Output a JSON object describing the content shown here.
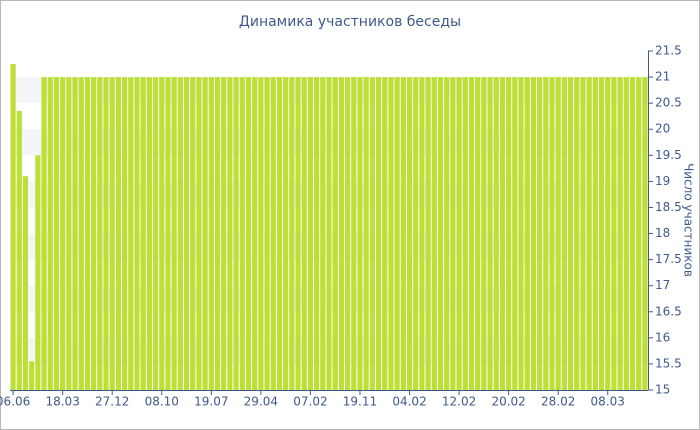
{
  "chart_data": {
    "type": "bar",
    "title": "Динамика участников беседы",
    "y_axis_label": "Число участников",
    "categories": [
      "06.06",
      null,
      null,
      null,
      null,
      null,
      null,
      null,
      "18.03",
      null,
      null,
      null,
      null,
      null,
      null,
      null,
      "27.12",
      null,
      null,
      null,
      null,
      null,
      null,
      null,
      "08.10",
      null,
      null,
      null,
      null,
      null,
      null,
      null,
      "19.07",
      null,
      null,
      null,
      null,
      null,
      null,
      null,
      "29.04",
      null,
      null,
      null,
      null,
      null,
      null,
      null,
      "07.02",
      null,
      null,
      null,
      null,
      null,
      null,
      null,
      "19.11",
      null,
      null,
      null,
      null,
      null,
      null,
      null,
      "04.02",
      null,
      null,
      null,
      null,
      null,
      null,
      null,
      "12.02",
      null,
      null,
      null,
      null,
      null,
      null,
      null,
      "20.02",
      null,
      null,
      null,
      null,
      null,
      null,
      null,
      "28.02",
      null,
      null,
      null,
      null,
      null,
      null,
      null,
      "08.03",
      null,
      null,
      null,
      null,
      null,
      null
    ],
    "values": [
      21.25,
      20.35,
      19.1,
      15.55,
      19.5,
      21,
      21,
      21,
      21,
      21,
      21,
      21,
      21,
      21,
      21,
      21,
      21,
      21,
      21,
      21,
      21,
      21,
      21,
      21,
      21,
      21,
      21,
      21,
      21,
      21,
      21,
      21,
      21,
      21,
      21,
      21,
      21,
      21,
      21,
      21,
      21,
      21,
      21,
      21,
      21,
      21,
      21,
      21,
      21,
      21,
      21,
      21,
      21,
      21,
      21,
      21,
      21,
      21,
      21,
      21,
      21,
      21,
      21,
      21,
      21,
      21,
      21,
      21,
      21,
      21,
      21,
      21,
      21,
      21,
      21,
      21,
      21,
      21,
      21,
      21,
      21,
      21,
      21,
      21,
      21,
      21,
      21,
      21,
      21,
      21,
      21,
      21,
      21,
      21,
      21,
      21,
      21,
      21,
      21,
      21,
      21,
      21,
      21
    ],
    "color": "#bde038",
    "ylim": [
      15,
      21.5
    ],
    "yticks": [
      15,
      15.5,
      16,
      16.5,
      17,
      17.5,
      18,
      18.5,
      19,
      19.5,
      20,
      20.5,
      21,
      21.5
    ],
    "grid": true
  }
}
